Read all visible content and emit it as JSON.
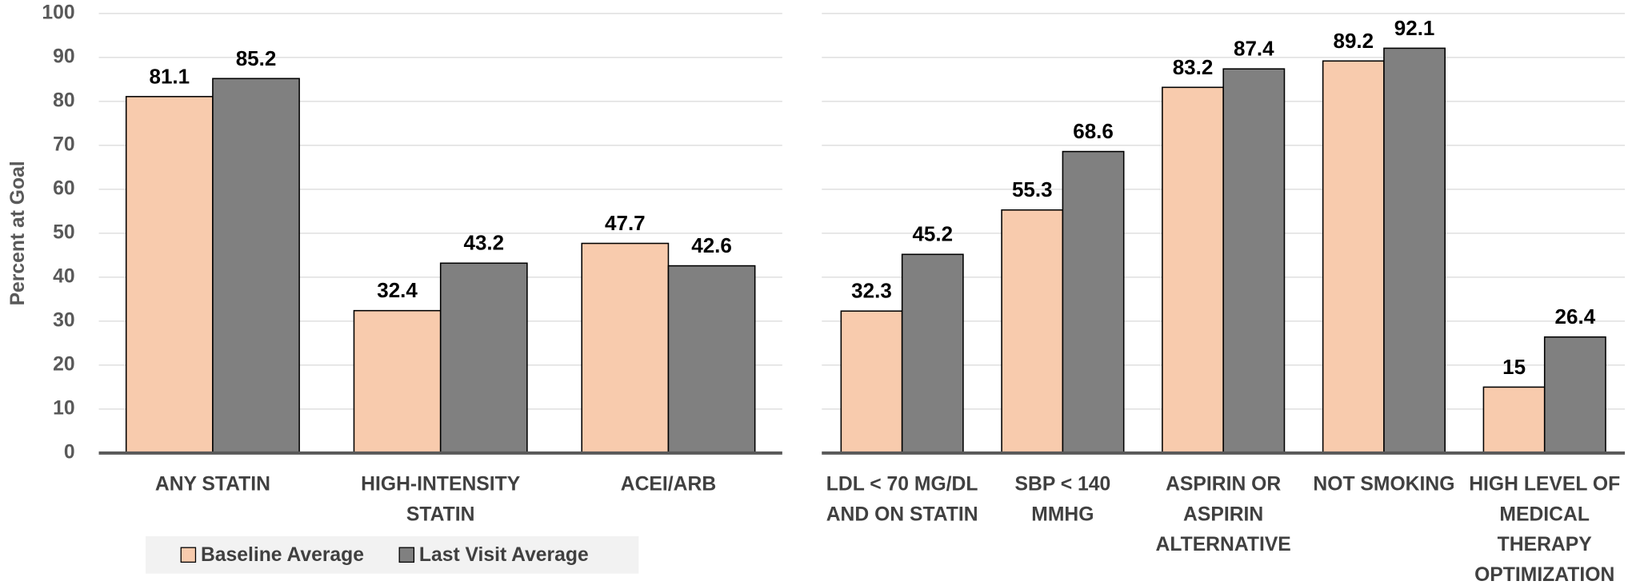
{
  "chart_data": [
    {
      "type": "bar",
      "y_label": "Percent at Goal",
      "categories": [
        "ANY STATIN",
        "HIGH-INTENSITY STATIN",
        "ACEI/ARB"
      ],
      "series": [
        {
          "name": "Baseline Average",
          "color": "#f8cbad",
          "values": [
            81.1,
            32.4,
            47.7
          ]
        },
        {
          "name": "Last Visit Average",
          "color": "#808080",
          "values": [
            85.2,
            43.2,
            42.6
          ]
        }
      ],
      "ylim": [
        0,
        100
      ],
      "yticks": [
        0,
        10,
        20,
        30,
        40,
        50,
        60,
        70,
        80,
        90,
        100
      ],
      "grid": true,
      "legend": "bottom"
    },
    {
      "type": "bar",
      "categories": [
        "LDL < 70 MG/DL AND ON STATIN",
        "SBP < 140 MMHG",
        "ASPIRIN OR ASPIRIN ALTERNATIVE",
        "NOT SMOKING",
        "HIGH LEVEL OF MEDICAL THERAPY OPTIMIZATION"
      ],
      "series": [
        {
          "color": "#f8cbad",
          "values": [
            32.3,
            55.3,
            83.2,
            89.2,
            15
          ]
        },
        {
          "color": "#808080",
          "values": [
            45.2,
            68.6,
            87.4,
            92.1,
            26.4
          ]
        }
      ],
      "ylim": [
        0,
        100
      ],
      "yticks": [
        0,
        10,
        20,
        30,
        40,
        50,
        60,
        70,
        80,
        90,
        100
      ],
      "grid": true
    }
  ]
}
